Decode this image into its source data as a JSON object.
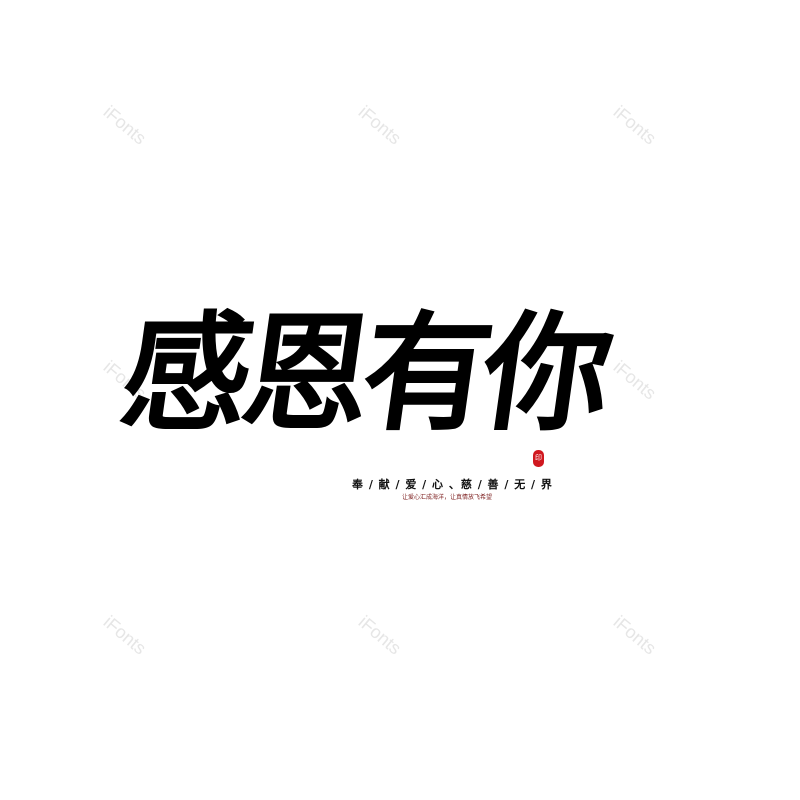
{
  "watermark": "iFonts",
  "title": "感恩有你",
  "subtitle": "奉 / 献 / 爱 / 心 、慈 / 善 / 无 / 界",
  "tagline": "让爱心汇成海洋，让真情放飞希望",
  "seal": "印",
  "colors": {
    "ink": "#000000",
    "seal": "#d0181f",
    "tagline": "#7a1a1a"
  }
}
